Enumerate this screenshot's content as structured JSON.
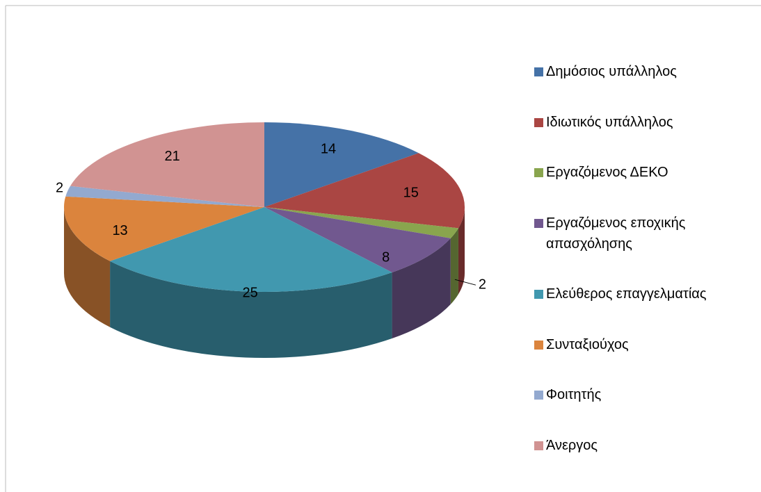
{
  "chart_data": {
    "type": "pie",
    "categories": [
      "Δημόσιος υπάλληλος",
      "Ιδιωτικός υπάλληλος",
      "Εργαζόμενος ΔΕΚΟ",
      "Εργαζόμενος εποχικής απασχόλησης",
      "Ελεύθερος επαγγελματίας",
      "Συνταξιούχος",
      "Φοιτητής",
      "Άνεργος"
    ],
    "values": [
      14,
      15,
      2,
      8,
      25,
      13,
      2,
      21
    ],
    "colors": [
      "#4572a7",
      "#aa4643",
      "#89a54e",
      "#71588f",
      "#4198af",
      "#db843d",
      "#93a9cf",
      "#d19392"
    ],
    "legend": "right"
  }
}
